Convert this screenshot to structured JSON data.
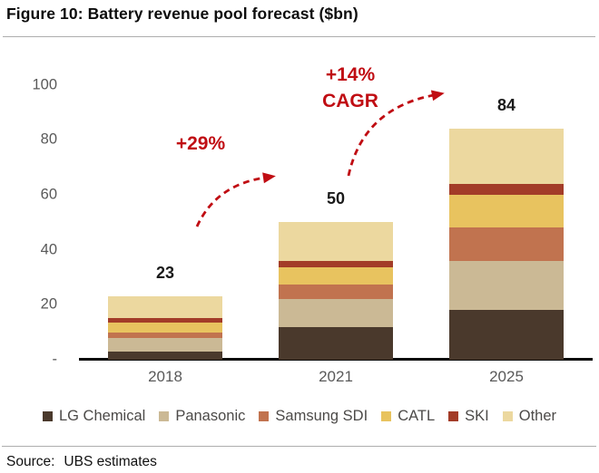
{
  "title": "Figure 10: Battery revenue pool forecast ($bn)",
  "annotations": {
    "growth_1": "+29%",
    "growth_2_line1": "+14%",
    "growth_2_line2": "CAGR"
  },
  "source": {
    "label": "Source:",
    "text": "UBS estimates"
  },
  "colors": {
    "annotation_red": "#c00d13",
    "axis_text": "#595959",
    "axis_line": "#0a0a0a",
    "legend_text": "#4c4a48"
  },
  "chart_data": {
    "type": "bar",
    "stacked": true,
    "title": "Battery revenue pool forecast ($bn)",
    "categories": [
      "2018",
      "2021",
      "2025"
    ],
    "totals": [
      23,
      50,
      84
    ],
    "series": [
      {
        "name": "LG Chemical",
        "color": "#4a392c",
        "values": [
          3,
          12,
          18
        ]
      },
      {
        "name": "Panasonic",
        "color": "#cbb995",
        "values": [
          5,
          10,
          18
        ]
      },
      {
        "name": "Samsung SDI",
        "color": "#c1734f",
        "values": [
          2,
          5.5,
          12
        ]
      },
      {
        "name": "CATL",
        "color": "#e8c35f",
        "values": [
          3.5,
          6,
          12
        ]
      },
      {
        "name": "SKI",
        "color": "#a33c28",
        "values": [
          1.5,
          2.5,
          4
        ]
      },
      {
        "name": "Other",
        "color": "#ecd89f",
        "values": [
          8,
          14,
          20
        ]
      }
    ],
    "ylim": [
      0,
      100
    ],
    "yticks": [
      100,
      80,
      60,
      40,
      20,
      0
    ],
    "ytick_labels": [
      "100",
      "80",
      "60",
      "40",
      "20",
      "-"
    ],
    "grid": false,
    "legend_position": "bottom"
  }
}
